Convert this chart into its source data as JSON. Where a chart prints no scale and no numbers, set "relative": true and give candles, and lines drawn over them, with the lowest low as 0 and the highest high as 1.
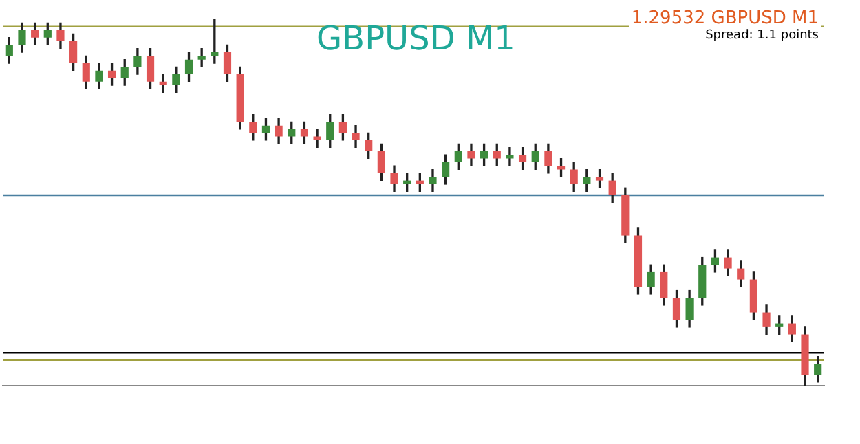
{
  "chart_data": {
    "type": "candlestick",
    "title": "GBPUSD M1",
    "relative": true,
    "legend": false,
    "annotations": [
      "1.29532 GBPUSD M1",
      "Spread: 1.1 points"
    ],
    "colors": [
      "#3c8c3c",
      "#3c8c3c",
      "#e05555",
      "#3c8c3c",
      "#e05555",
      "#e05555",
      "#e05555",
      "#3c8c3c",
      "#e05555",
      "#3c8c3c",
      "#3c8c3c",
      "#e05555",
      "#e05555",
      "#3c8c3c",
      "#3c8c3c",
      "#3c8c3c",
      "#3c8c3c",
      "#e05555",
      "#e05555",
      "#e05555",
      "#3c8c3c",
      "#e05555",
      "#3c8c3c",
      "#e05555",
      "#e05555",
      "#3c8c3c",
      "#e05555",
      "#e05555",
      "#e05555",
      "#e05555",
      "#e05555",
      "#3c8c3c",
      "#e05555",
      "#3c8c3c",
      "#3c8c3c",
      "#3c8c3c",
      "#e05555",
      "#3c8c3c",
      "#e05555",
      "#3c8c3c",
      "#e05555",
      "#3c8c3c",
      "#e05555",
      "#e05555",
      "#e05555",
      "#3c8c3c",
      "#e05555",
      "#e05555",
      "#e05555",
      "#e05555",
      "#3c8c3c",
      "#e05555",
      "#e05555",
      "#3c8c3c",
      "#3c8c3c",
      "#3c8c3c",
      "#e05555",
      "#e05555",
      "#e05555",
      "#e05555",
      "#3c8c3c",
      "#e05555",
      "#e05555",
      "#3c8c3c"
    ],
    "categories": [
      null,
      null,
      null,
      null,
      null,
      null,
      null,
      null,
      null,
      null,
      null,
      null,
      null,
      null,
      null,
      null,
      null,
      null,
      null,
      null,
      null,
      null,
      null,
      null,
      null,
      null,
      null,
      null,
      null,
      null,
      null,
      null,
      null,
      null,
      null,
      null,
      null,
      null,
      null,
      null,
      null,
      null,
      null,
      null,
      null,
      null,
      null,
      null,
      null,
      null,
      null,
      null,
      null,
      null,
      null,
      null,
      null,
      null,
      null,
      null,
      null,
      null,
      null,
      null
    ],
    "ohlc": [
      [
        0.9,
        0.95,
        0.88,
        0.93
      ],
      [
        0.93,
        0.99,
        0.91,
        0.97
      ],
      [
        0.97,
        0.99,
        0.93,
        0.95
      ],
      [
        0.95,
        0.99,
        0.93,
        0.97
      ],
      [
        0.97,
        0.99,
        0.92,
        0.94
      ],
      [
        0.94,
        0.96,
        0.86,
        0.88
      ],
      [
        0.88,
        0.9,
        0.81,
        0.83
      ],
      [
        0.83,
        0.88,
        0.81,
        0.86
      ],
      [
        0.86,
        0.88,
        0.82,
        0.84
      ],
      [
        0.84,
        0.89,
        0.82,
        0.87
      ],
      [
        0.87,
        0.92,
        0.85,
        0.9
      ],
      [
        0.9,
        0.92,
        0.81,
        0.83
      ],
      [
        0.83,
        0.85,
        0.8,
        0.82
      ],
      [
        0.82,
        0.87,
        0.8,
        0.85
      ],
      [
        0.85,
        0.91,
        0.83,
        0.89
      ],
      [
        0.89,
        0.92,
        0.87,
        0.9
      ],
      [
        0.9,
        1.0,
        0.88,
        0.91
      ],
      [
        0.91,
        0.93,
        0.83,
        0.85
      ],
      [
        0.85,
        0.87,
        0.7,
        0.72
      ],
      [
        0.72,
        0.74,
        0.67,
        0.69
      ],
      [
        0.69,
        0.73,
        0.67,
        0.71
      ],
      [
        0.71,
        0.73,
        0.66,
        0.68
      ],
      [
        0.68,
        0.72,
        0.66,
        0.7
      ],
      [
        0.7,
        0.72,
        0.66,
        0.68
      ],
      [
        0.68,
        0.7,
        0.65,
        0.67
      ],
      [
        0.67,
        0.74,
        0.65,
        0.72
      ],
      [
        0.72,
        0.74,
        0.67,
        0.69
      ],
      [
        0.69,
        0.71,
        0.65,
        0.67
      ],
      [
        0.67,
        0.69,
        0.62,
        0.64
      ],
      [
        0.64,
        0.66,
        0.56,
        0.58
      ],
      [
        0.58,
        0.6,
        0.53,
        0.55
      ],
      [
        0.55,
        0.58,
        0.53,
        0.56
      ],
      [
        0.56,
        0.58,
        0.53,
        0.55
      ],
      [
        0.55,
        0.59,
        0.53,
        0.57
      ],
      [
        0.57,
        0.63,
        0.55,
        0.61
      ],
      [
        0.61,
        0.66,
        0.59,
        0.64
      ],
      [
        0.64,
        0.66,
        0.6,
        0.62
      ],
      [
        0.62,
        0.66,
        0.6,
        0.64
      ],
      [
        0.64,
        0.66,
        0.6,
        0.62
      ],
      [
        0.62,
        0.65,
        0.6,
        0.63
      ],
      [
        0.63,
        0.65,
        0.59,
        0.61
      ],
      [
        0.61,
        0.66,
        0.59,
        0.64
      ],
      [
        0.64,
        0.66,
        0.58,
        0.6
      ],
      [
        0.6,
        0.62,
        0.57,
        0.59
      ],
      [
        0.59,
        0.61,
        0.53,
        0.55
      ],
      [
        0.55,
        0.59,
        0.53,
        0.57
      ],
      [
        0.57,
        0.59,
        0.54,
        0.56
      ],
      [
        0.56,
        0.58,
        0.5,
        0.52
      ],
      [
        0.52,
        0.54,
        0.39,
        0.41
      ],
      [
        0.41,
        0.43,
        0.25,
        0.27
      ],
      [
        0.27,
        0.33,
        0.25,
        0.31
      ],
      [
        0.31,
        0.33,
        0.22,
        0.24
      ],
      [
        0.24,
        0.26,
        0.16,
        0.18
      ],
      [
        0.18,
        0.26,
        0.16,
        0.24
      ],
      [
        0.24,
        0.35,
        0.22,
        0.33
      ],
      [
        0.33,
        0.37,
        0.31,
        0.35
      ],
      [
        0.35,
        0.37,
        0.3,
        0.32
      ],
      [
        0.32,
        0.34,
        0.27,
        0.29
      ],
      [
        0.29,
        0.31,
        0.18,
        0.2
      ],
      [
        0.2,
        0.22,
        0.14,
        0.16
      ],
      [
        0.16,
        0.19,
        0.14,
        0.17
      ],
      [
        0.17,
        0.19,
        0.12,
        0.14
      ],
      [
        0.14,
        0.16,
        0.0,
        0.03
      ],
      [
        0.03,
        0.08,
        0.01,
        0.06
      ]
    ],
    "ref_lines": [
      {
        "axis": "y",
        "value": 0.98,
        "color": "#a0a040"
      },
      {
        "axis": "y",
        "value": 0.52,
        "color": "#4a7fa0"
      },
      {
        "axis": "y",
        "value": 0.09,
        "color": "#000000"
      },
      {
        "axis": "y",
        "value": 0.07,
        "color": "#a0a040"
      }
    ]
  }
}
